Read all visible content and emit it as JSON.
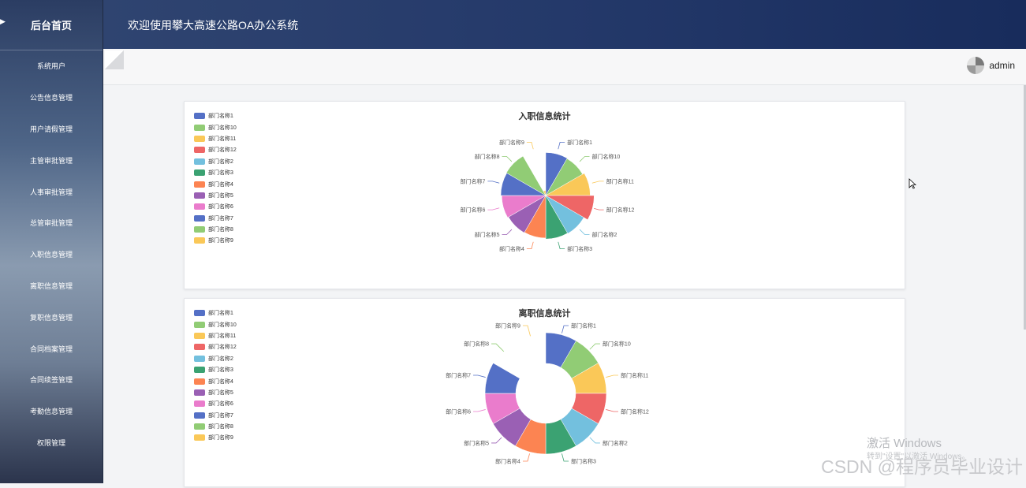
{
  "sidebar": {
    "brand": "后台首页",
    "items": [
      "系统用户",
      "公告信息管理",
      "用户请假管理",
      "主管审批管理",
      "人事审批管理",
      "总管审批管理",
      "入职信息管理",
      "离职信息管理",
      "复职信息管理",
      "合同档案管理",
      "合同续签管理",
      "考勤信息管理",
      "权限管理"
    ]
  },
  "header": {
    "title": "欢迎使用攀大高速公路OA办公系统"
  },
  "user": {
    "name": "admin"
  },
  "colors": [
    "#5470c6",
    "#91cc75",
    "#fac858",
    "#ee6666",
    "#73c0de",
    "#3ba272",
    "#fc8452",
    "#9a60b4",
    "#ea7ccc",
    "#5470c6",
    "#91cc75",
    "#fac858"
  ],
  "chart_data": [
    {
      "type": "pie",
      "title": "入职信息统计",
      "rose": true,
      "categories": [
        "部门名称1",
        "部门名称10",
        "部门名称11",
        "部门名称12",
        "部门名称2",
        "部门名称3",
        "部门名称4",
        "部门名称5",
        "部门名称6",
        "部门名称7",
        "部门名称8",
        "部门名称9"
      ],
      "values": [
        1,
        1,
        1,
        1,
        1,
        1,
        1,
        1,
        1,
        1,
        1,
        1
      ],
      "radii": [
        0.88,
        0.87,
        0.91,
        0.99,
        0.9,
        0.89,
        0.87,
        0.88,
        0.9,
        0.92,
        0.93,
        0.1
      ],
      "legend": "top-left"
    },
    {
      "type": "pie",
      "title": "离职信息统计",
      "donut": true,
      "categories": [
        "部门名称1",
        "部门名称10",
        "部门名称11",
        "部门名称12",
        "部门名称2",
        "部门名称3",
        "部门名称4",
        "部门名称5",
        "部门名称6",
        "部门名称7",
        "部门名称8",
        "部门名称9"
      ],
      "values": [
        1,
        1,
        1,
        1,
        1,
        1,
        1,
        1,
        1,
        1,
        1,
        1
      ],
      "radii": [
        1.0,
        1.0,
        1.0,
        1.0,
        1.0,
        1.0,
        1.0,
        1.0,
        1.0,
        1.0,
        0,
        0
      ],
      "legend": "top-left"
    }
  ],
  "watermark": {
    "line1": "激活 Windows",
    "line2": "转到\"设置\"以激活 Windows。"
  },
  "csdn": "CSDN @程序员毕业设计"
}
